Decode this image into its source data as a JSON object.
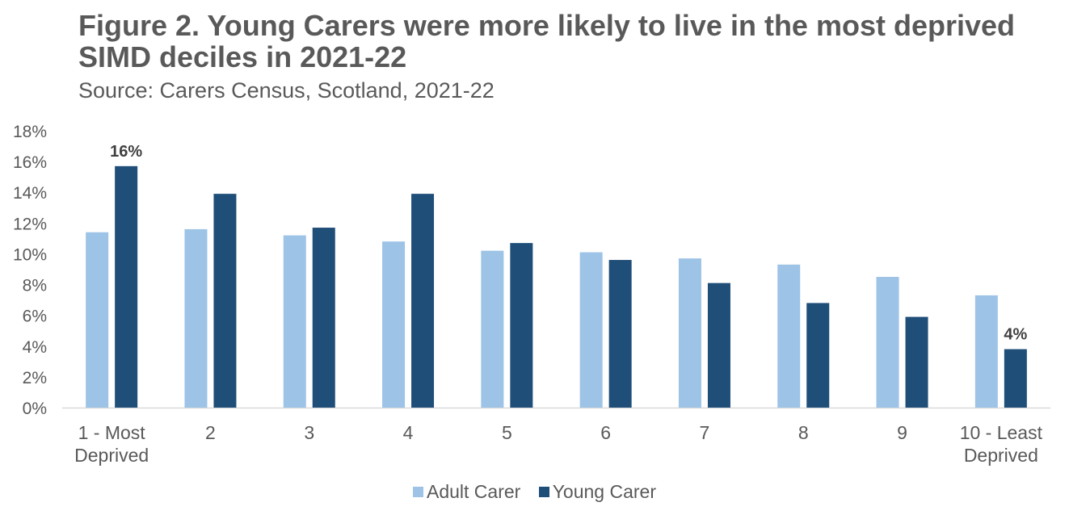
{
  "chart_data": {
    "type": "bar",
    "title": "Figure 2. Young Carers were more likely to live in the most deprived SIMD deciles in 2021-22",
    "subtitle": "Source: Carers Census, Scotland, 2021-22",
    "categories": [
      "1 - Most Deprived",
      "2",
      "3",
      "4",
      "5",
      "6",
      "7",
      "8",
      "9",
      "10 - Least Deprived"
    ],
    "series": [
      {
        "name": "Adult Carer",
        "color": "#9DC3E6",
        "values": [
          11.4,
          11.6,
          11.2,
          10.8,
          10.2,
          10.1,
          9.7,
          9.3,
          8.5,
          7.3
        ]
      },
      {
        "name": "Young Carer",
        "color": "#1F4E79",
        "values": [
          15.7,
          13.9,
          11.7,
          13.9,
          10.7,
          9.6,
          8.1,
          6.8,
          5.9,
          3.8
        ]
      }
    ],
    "data_labels": [
      {
        "series": 1,
        "index": 0,
        "text": "16%"
      },
      {
        "series": 1,
        "index": 9,
        "text": "4%"
      }
    ],
    "ylim": [
      0,
      18
    ],
    "yticks": [
      0,
      2,
      4,
      6,
      8,
      10,
      12,
      14,
      16,
      18
    ],
    "ytick_suffix": "%",
    "legend_position": "bottom",
    "grid": false
  }
}
